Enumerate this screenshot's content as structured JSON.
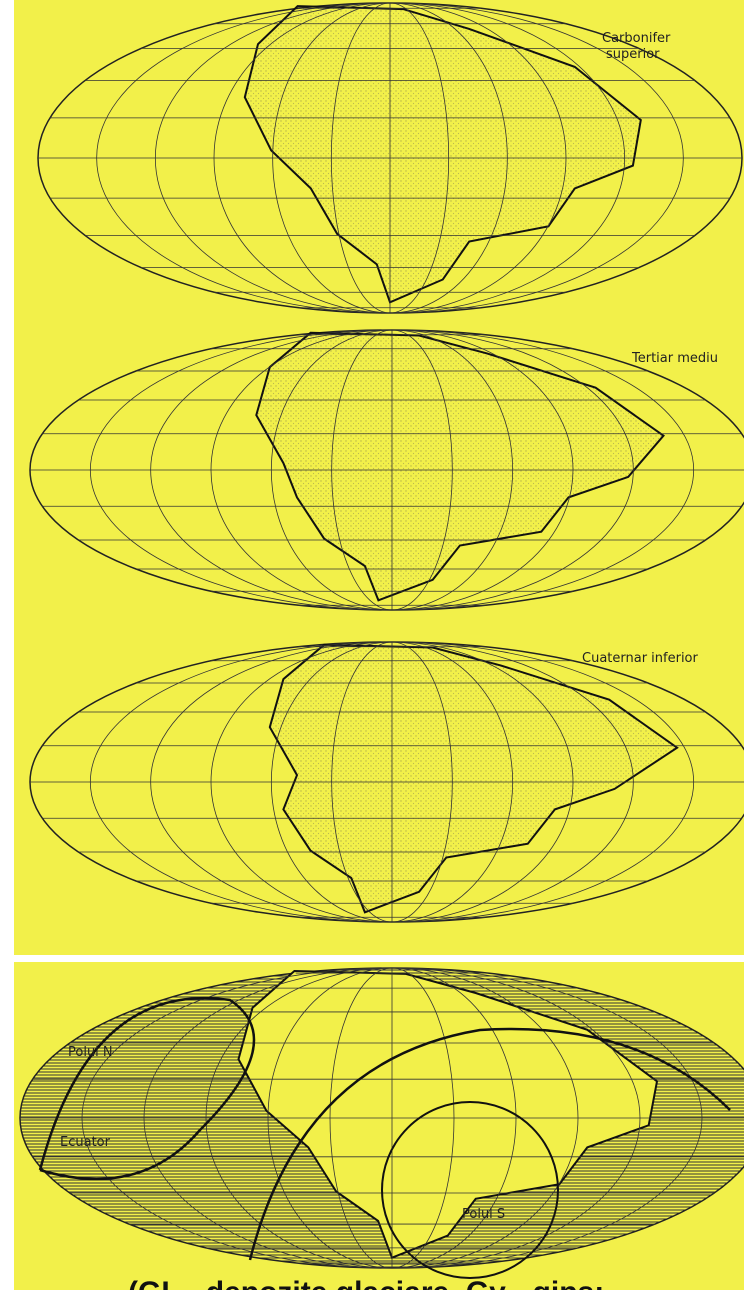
{
  "maps": [
    {
      "label": [
        "Carbonifer",
        "superior"
      ]
    },
    {
      "label": [
        "Tertiar mediu"
      ]
    },
    {
      "label": [
        "Cuaternar inferior"
      ]
    }
  ],
  "paleo_map": {
    "north_pole": "Polul N",
    "equator": "Ecuator",
    "south_pole": "Polul S"
  },
  "caption": "(GL - depozite glaciare, Gy - gips;"
}
